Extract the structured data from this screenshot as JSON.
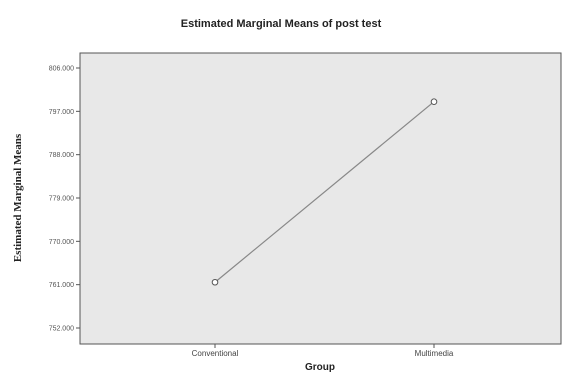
{
  "chart_data": {
    "type": "line",
    "title": "Estimated Marginal Means of post test",
    "xlabel": "Group",
    "ylabel": "Estimated Marginal Means",
    "categories": [
      "Conventional",
      "Multimedia"
    ],
    "values": [
      761.5,
      799.0
    ],
    "y_ticks": [
      "752.000",
      "761.000",
      "770.000",
      "779.000",
      "788.000",
      "797.000",
      "806.000"
    ],
    "ylim": [
      752.0,
      806.0
    ],
    "grid": false,
    "legend": "none",
    "colors": {
      "plot_background": "#e8e8e8",
      "line": "#888888",
      "marker_stroke": "#555555"
    }
  }
}
